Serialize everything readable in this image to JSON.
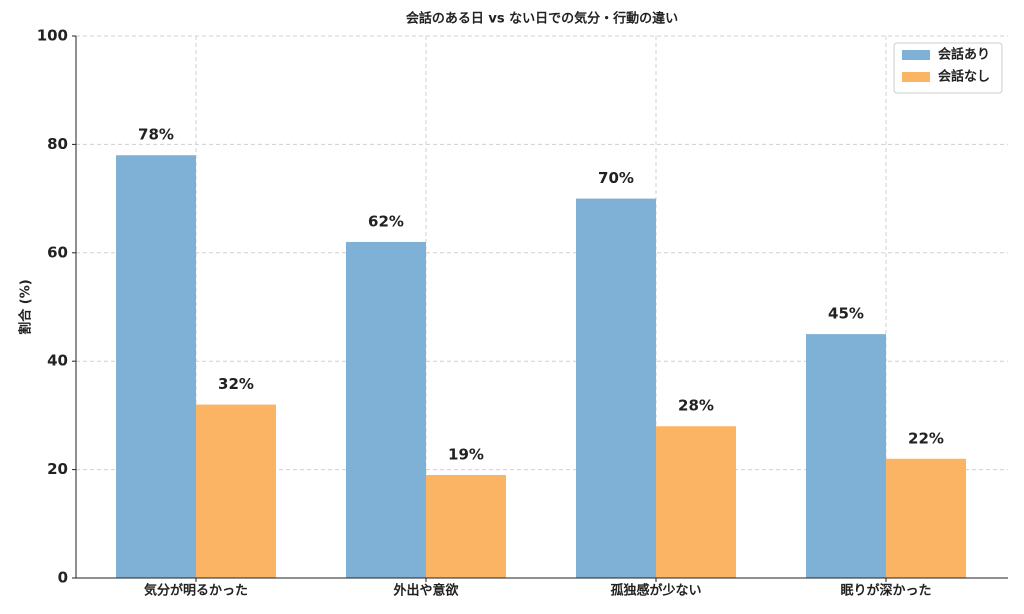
{
  "chart_data": {
    "type": "grouped_bar",
    "title": "会話のある日 vs ない日での気分・行動の違い",
    "ylabel": "割合 (%)",
    "categories": [
      "気分が明るかった",
      "外出や意欲",
      "孤独感が少ない",
      "眠りが深かった"
    ],
    "series": [
      {
        "name": "会話あり",
        "color": "#7fb0d5",
        "values": [
          78,
          62,
          70,
          45
        ],
        "value_labels": [
          "78%",
          "62%",
          "70%",
          "45%"
        ]
      },
      {
        "name": "会話なし",
        "color": "#fbb463",
        "values": [
          32,
          19,
          28,
          22
        ],
        "value_labels": [
          "32%",
          "19%",
          "28%",
          "22%"
        ]
      }
    ],
    "ylim": [
      0,
      100
    ],
    "yticks": [
      0,
      20,
      40,
      60,
      80,
      100
    ],
    "grid": true,
    "legend": "upper-right"
  }
}
